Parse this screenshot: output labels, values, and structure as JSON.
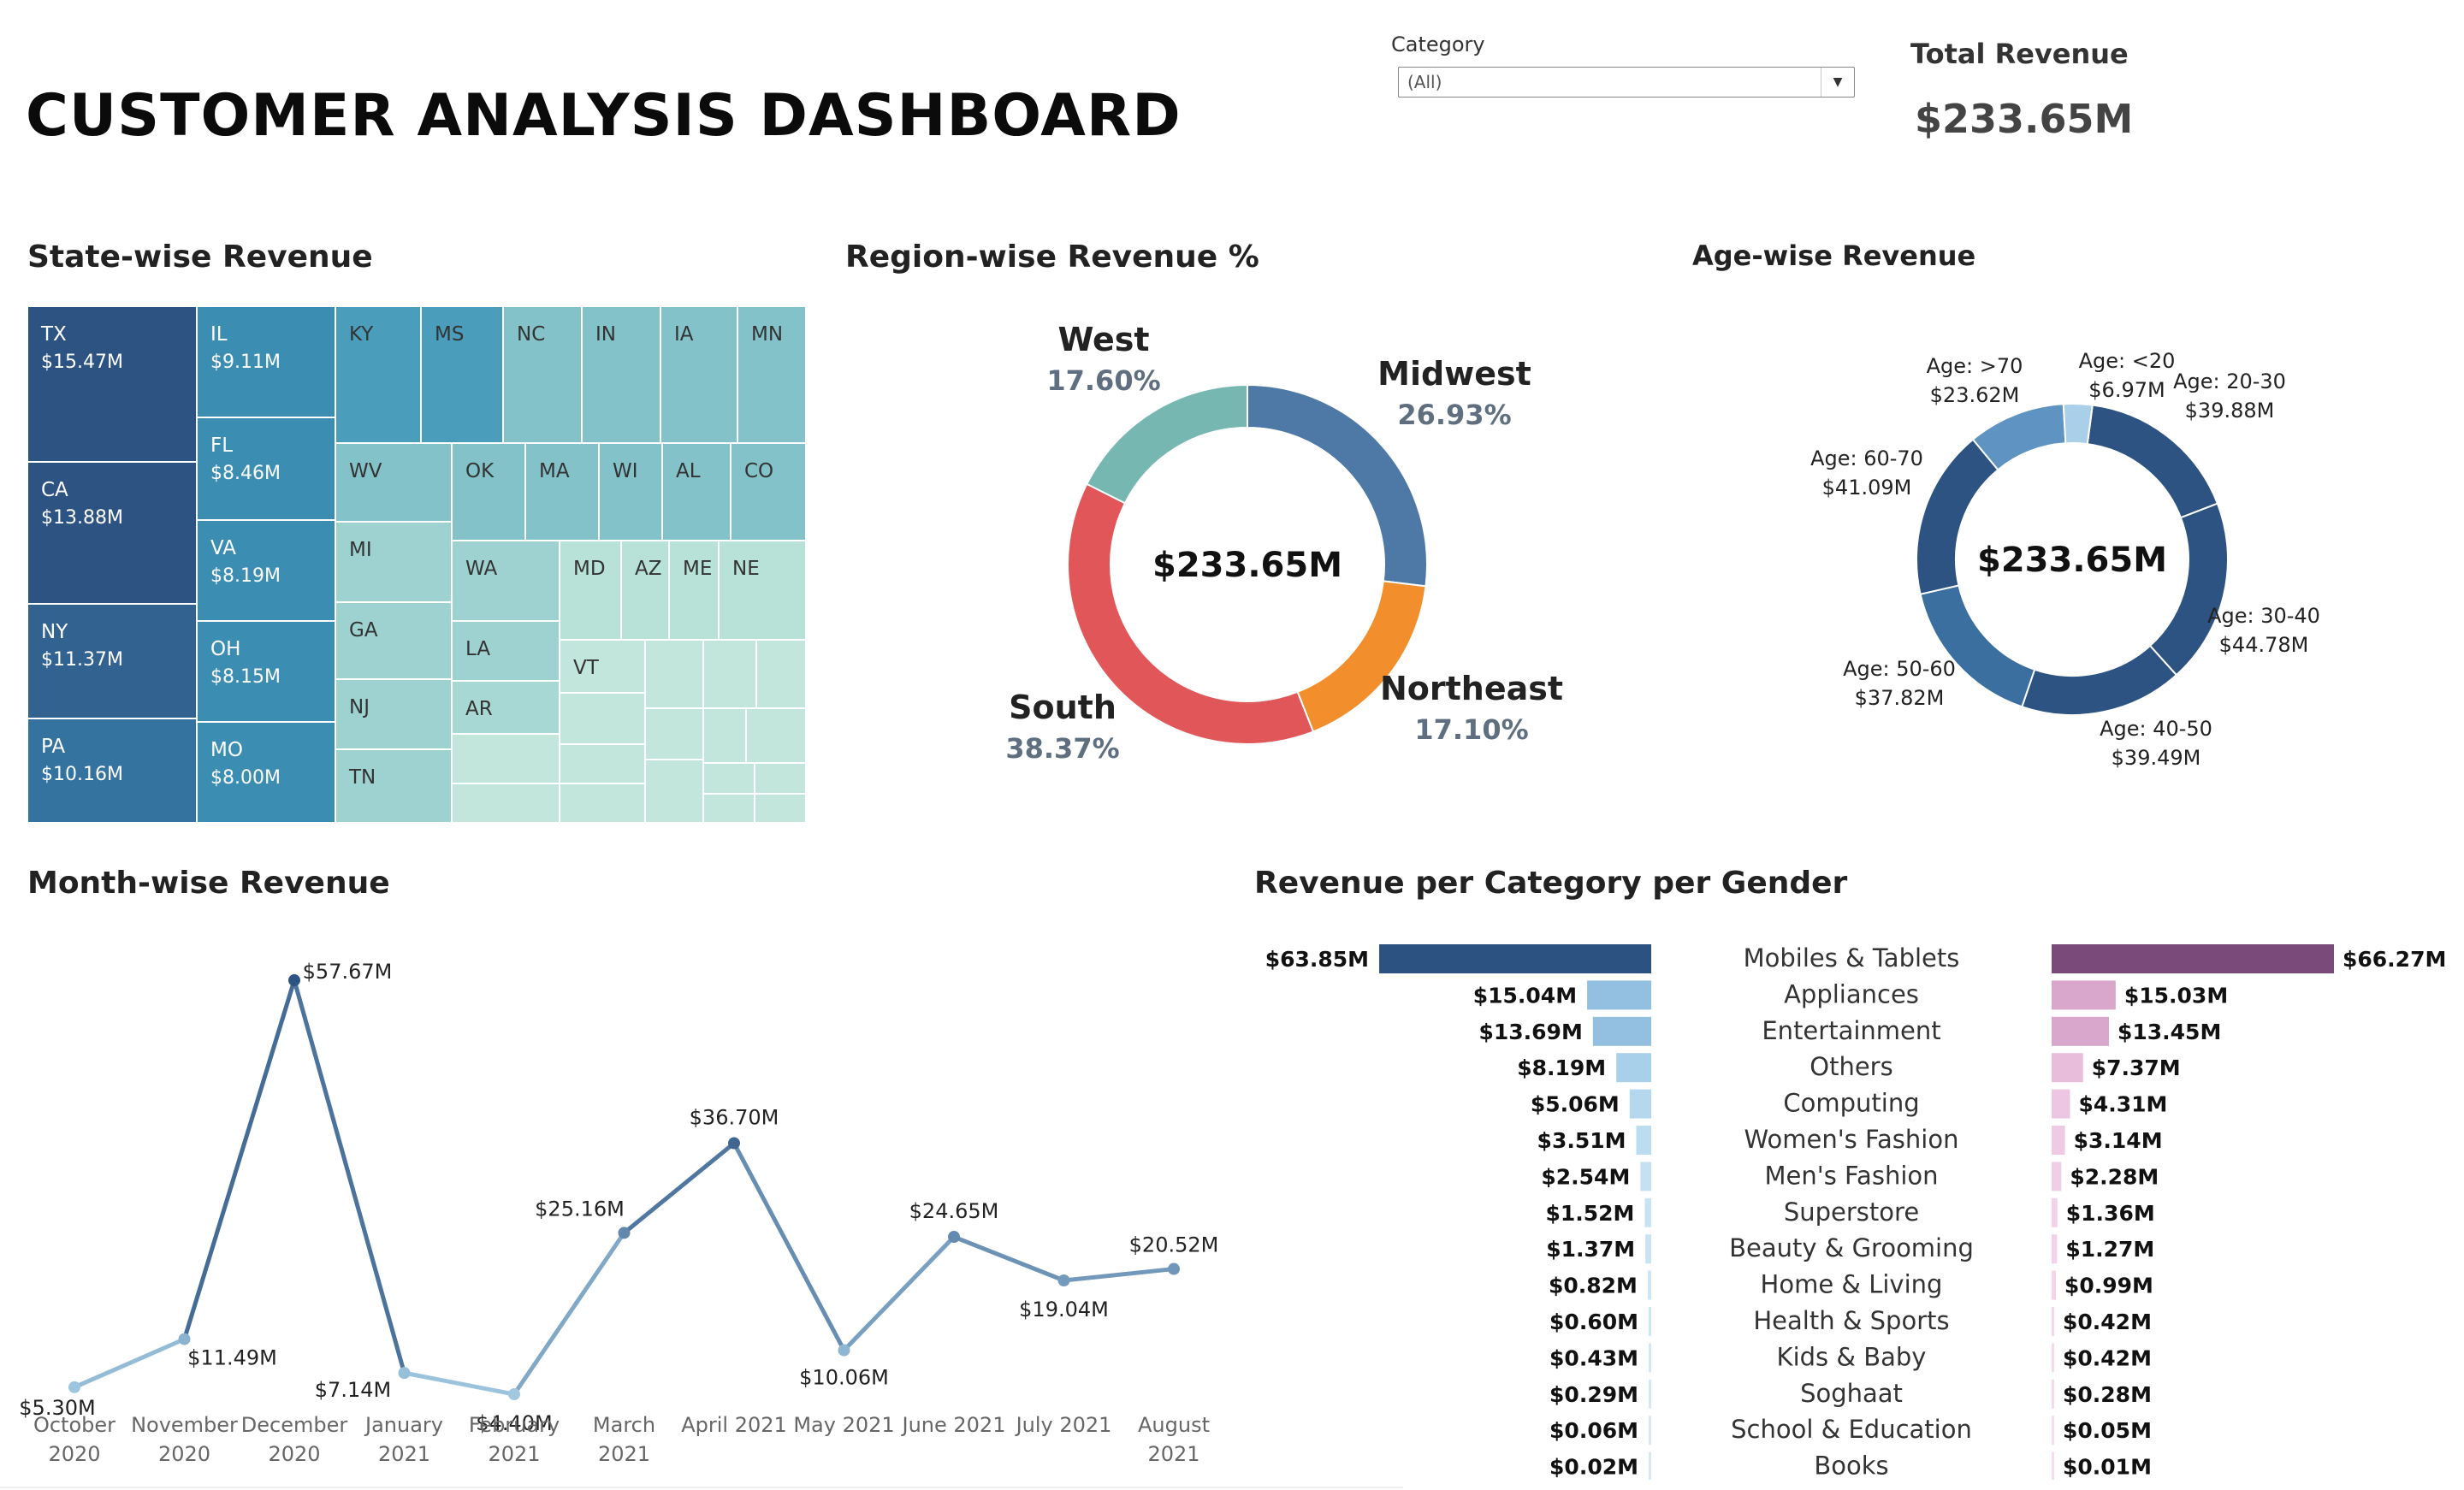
{
  "header": {
    "title": "CUSTOMER ANALYSIS DASHBOARD",
    "filter_label": "Category",
    "filter_value": "(All)",
    "kpi_label": "Total Revenue",
    "kpi_value": "$233.65M"
  },
  "sections": {
    "treemap": "State-wise Revenue",
    "region": "Region-wise Revenue %",
    "age": "Age-wise Revenue",
    "month": "Month-wise Revenue",
    "category_gender": "Revenue per Category per Gender"
  },
  "colors": {
    "west": "#76b7b2",
    "midwest": "#4e79a7",
    "northeast": "#f28e2b",
    "south": "#e15759",
    "female_bar": "#2c5282",
    "male_bar": "#7a4a7a"
  },
  "chart_data": [
    {
      "type": "treemap",
      "title": "State-wise Revenue",
      "items": [
        {
          "state": "TX",
          "value": "$15.47M"
        },
        {
          "state": "CA",
          "value": "$13.88M"
        },
        {
          "state": "NY",
          "value": "$11.37M"
        },
        {
          "state": "PA",
          "value": "$10.16M"
        },
        {
          "state": "IL",
          "value": "$9.11M"
        },
        {
          "state": "FL",
          "value": "$8.46M"
        },
        {
          "state": "VA",
          "value": "$8.19M"
        },
        {
          "state": "OH",
          "value": "$8.15M"
        },
        {
          "state": "MO",
          "value": "$8.00M"
        },
        {
          "state": "KY",
          "value": ""
        },
        {
          "state": "MS",
          "value": ""
        },
        {
          "state": "NC",
          "value": ""
        },
        {
          "state": "IN",
          "value": ""
        },
        {
          "state": "IA",
          "value": ""
        },
        {
          "state": "MN",
          "value": ""
        },
        {
          "state": "WV",
          "value": ""
        },
        {
          "state": "OK",
          "value": ""
        },
        {
          "state": "MA",
          "value": ""
        },
        {
          "state": "WI",
          "value": ""
        },
        {
          "state": "AL",
          "value": ""
        },
        {
          "state": "CO",
          "value": ""
        },
        {
          "state": "MI",
          "value": ""
        },
        {
          "state": "WA",
          "value": ""
        },
        {
          "state": "MD",
          "value": ""
        },
        {
          "state": "AZ",
          "value": ""
        },
        {
          "state": "ME",
          "value": ""
        },
        {
          "state": "NE",
          "value": ""
        },
        {
          "state": "GA",
          "value": ""
        },
        {
          "state": "LA",
          "value": ""
        },
        {
          "state": "VT",
          "value": ""
        },
        {
          "state": "NJ",
          "value": ""
        },
        {
          "state": "AR",
          "value": ""
        },
        {
          "state": "TN",
          "value": ""
        }
      ]
    },
    {
      "type": "pie",
      "title": "Region-wise Revenue %",
      "center_label": "$233.65M",
      "slices": [
        {
          "name": "Midwest",
          "value": 26.93,
          "label": "26.93%"
        },
        {
          "name": "Northeast",
          "value": 17.1,
          "label": "17.10%"
        },
        {
          "name": "South",
          "value": 38.37,
          "label": "38.37%"
        },
        {
          "name": "West",
          "value": 17.6,
          "label": "17.60%"
        }
      ]
    },
    {
      "type": "pie",
      "title": "Age-wise Revenue",
      "center_label": "$233.65M",
      "slices": [
        {
          "name": "Age: 20-30",
          "value": 39.88,
          "label": "$39.88M"
        },
        {
          "name": "Age: 30-40",
          "value": 44.78,
          "label": "$44.78M"
        },
        {
          "name": "Age: 40-50",
          "value": 39.49,
          "label": "$39.49M"
        },
        {
          "name": "Age: 50-60",
          "value": 37.82,
          "label": "$37.82M"
        },
        {
          "name": "Age: 60-70",
          "value": 41.09,
          "label": "$41.09M"
        },
        {
          "name": "Age: >70",
          "value": 23.62,
          "label": "$23.62M"
        },
        {
          "name": "Age: <20",
          "value": 6.97,
          "label": "$6.97M"
        }
      ]
    },
    {
      "type": "line",
      "title": "Month-wise Revenue",
      "categories": [
        [
          "October",
          "2020"
        ],
        [
          "November",
          "2020"
        ],
        [
          "December",
          "2020"
        ],
        [
          "January",
          "2021"
        ],
        [
          "February",
          "2021"
        ],
        [
          "March",
          "2021"
        ],
        [
          "April 2021",
          ""
        ],
        [
          "May 2021",
          ""
        ],
        [
          "June 2021",
          ""
        ],
        [
          "July 2021",
          ""
        ],
        [
          "August",
          "2021"
        ]
      ],
      "values": [
        5.3,
        11.49,
        57.67,
        7.14,
        4.4,
        25.16,
        36.7,
        10.06,
        24.65,
        19.04,
        20.52
      ],
      "labels": [
        "$5.30M",
        "$11.49M",
        "$57.67M",
        "$7.14M",
        "$4.40M",
        "$25.16M",
        "$36.70M",
        "$10.06M",
        "$24.65M",
        "$19.04M",
        "$20.52M"
      ],
      "ylim": [
        0,
        60
      ]
    },
    {
      "type": "bar",
      "title": "Revenue per Category per Gender",
      "categories": [
        "Mobiles & Tablets",
        "Appliances",
        "Entertainment",
        "Others",
        "Computing",
        "Women's Fashion",
        "Men's Fashion",
        "Superstore",
        "Beauty & Grooming",
        "Home & Living",
        "Health & Sports",
        "Kids & Baby",
        "Soghaat",
        "School & Education",
        "Books"
      ],
      "series": [
        {
          "values": [
            63.85,
            15.04,
            13.69,
            8.19,
            5.06,
            3.51,
            2.54,
            1.52,
            1.37,
            0.82,
            0.6,
            0.43,
            0.29,
            0.06,
            0.02
          ],
          "labels": [
            "$63.85M",
            "$15.04M",
            "$13.69M",
            "$8.19M",
            "$5.06M",
            "$3.51M",
            "$2.54M",
            "$1.52M",
            "$1.37M",
            "$0.82M",
            "$0.60M",
            "$0.43M",
            "$0.29M",
            "$0.06M",
            "$0.02M"
          ]
        },
        {
          "values": [
            66.27,
            15.03,
            13.45,
            7.37,
            4.31,
            3.14,
            2.28,
            1.36,
            1.27,
            0.99,
            0.42,
            0.42,
            0.28,
            0.05,
            0.01
          ],
          "labels": [
            "$66.27M",
            "$15.03M",
            "$13.45M",
            "$7.37M",
            "$4.31M",
            "$3.14M",
            "$2.28M",
            "$1.36M",
            "$1.27M",
            "$0.99M",
            "$0.42M",
            "$0.42M",
            "$0.28M",
            "$0.05M",
            "$0.01M"
          ]
        }
      ]
    }
  ]
}
